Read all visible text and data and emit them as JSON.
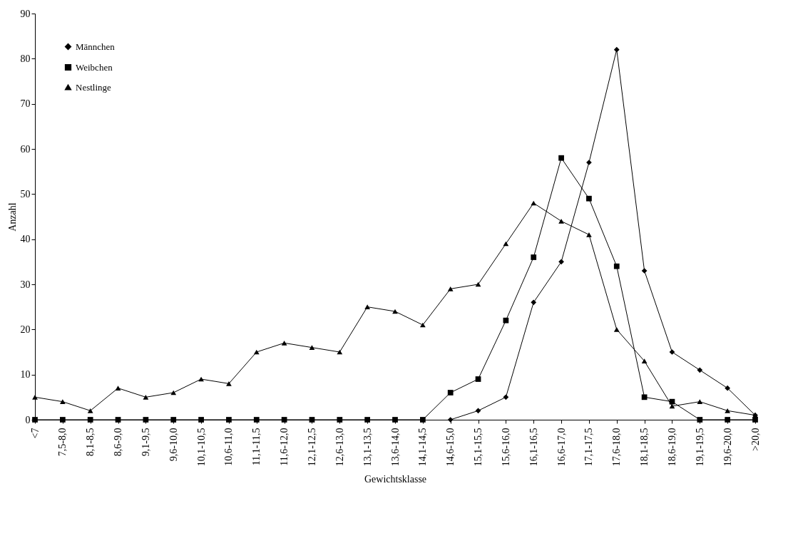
{
  "chart_data": {
    "type": "line",
    "xlabel": "Gewichtsklasse",
    "ylabel": "Anzahl",
    "categories": [
      "<7",
      "7,5-8,0",
      "8,1-8,5",
      "8,6-9,0",
      "9,1-9,5",
      "9,6-10,0",
      "10,1-10,5",
      "10,6-11,0",
      "11,1-11,5",
      "11,6-12,0",
      "12,1-12,5",
      "12,6-13,0",
      "13,1-13,5",
      "13,6-14,0",
      "14,1-14,5",
      "14,6-15,0",
      "15,1-15,5",
      "15,6-16,0",
      "16,1-16,5",
      "16,6-17,0",
      "17,1-17,5",
      "17,6-18,0",
      "18,1-18,5",
      "18,6-19,0",
      "19,1-19,5",
      "19,6-20,0",
      ">20,0"
    ],
    "series": [
      {
        "name": "Männchen",
        "color": "#000000",
        "marker": "diamond",
        "values": [
          null,
          null,
          null,
          null,
          null,
          null,
          null,
          null,
          null,
          null,
          null,
          null,
          null,
          null,
          null,
          0,
          2,
          5,
          26,
          35,
          57,
          82,
          33,
          15,
          11,
          7,
          1
        ]
      },
      {
        "name": "Weibchen",
        "color": "#000000",
        "marker": "square",
        "values": [
          0,
          0,
          0,
          0,
          0,
          0,
          0,
          0,
          0,
          0,
          0,
          0,
          0,
          0,
          0,
          6,
          9,
          22,
          36,
          58,
          49,
          34,
          5,
          4,
          0,
          0,
          0
        ]
      },
      {
        "name": "Nestlinge",
        "color": "#000000",
        "marker": "triangle",
        "values": [
          5,
          4,
          2,
          7,
          5,
          6,
          9,
          8,
          15,
          17,
          16,
          15,
          25,
          24,
          21,
          29,
          30,
          39,
          48,
          44,
          41,
          20,
          13,
          3,
          4,
          2,
          1
        ]
      }
    ],
    "ylim": [
      0,
      90
    ],
    "yticks": [
      0,
      10,
      20,
      30,
      40,
      50,
      60,
      70,
      80,
      90
    ],
    "grid": false,
    "legend": "top left",
    "line_style": "solid"
  }
}
